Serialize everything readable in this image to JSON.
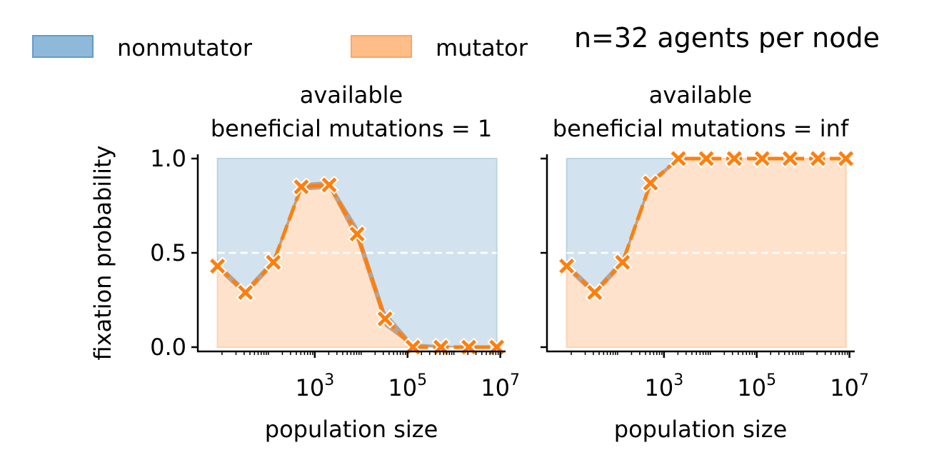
{
  "suptitle": "n=32 agents per node",
  "legend": {
    "placement": "top-left",
    "entries": [
      {
        "label": "nonmutator",
        "color": "#8fb9d9",
        "edge": "#5f9ccb"
      },
      {
        "label": "mutator",
        "color": "#ffbe87",
        "edge": "#ffa45c"
      }
    ]
  },
  "colors": {
    "line": "#ff7f0e",
    "band": "#a98e7a",
    "nonmutator_fill": "#d2e3ef",
    "mutator_fill": "#ffe2cb",
    "reference_line": "#ffffff"
  },
  "chart_data": [
    {
      "type": "area",
      "title_line1": "available",
      "title_line2": "beneficial mutations = 1",
      "xlabel": "population size",
      "ylabel": "fixation probability",
      "xscale": "log",
      "xlim": [
        3,
        13000000
      ],
      "ylim": [
        0,
        1
      ],
      "xticks": [
        1000,
        100000,
        10000000
      ],
      "xtick_labels": [
        {
          "base": "10",
          "exp": "3"
        },
        {
          "base": "10",
          "exp": "5"
        },
        {
          "base": "10",
          "exp": "7"
        }
      ],
      "yticks": [
        0.0,
        0.5,
        1.0
      ],
      "ytick_labels": [
        "0.0",
        "0.5",
        "1.0"
      ],
      "reference_y": 0.5,
      "x": [
        8,
        32,
        128,
        512,
        2048,
        8192,
        32768,
        131072,
        524288,
        2097152,
        8388608
      ],
      "values": [
        0.43,
        0.29,
        0.45,
        0.85,
        0.86,
        0.6,
        0.15,
        0.0,
        0.0,
        0.0,
        0.0
      ],
      "ci_low": [
        0.41,
        0.27,
        0.43,
        0.83,
        0.84,
        0.56,
        0.11,
        0.0,
        0.0,
        0.0,
        0.0
      ],
      "ci_high": [
        0.45,
        0.31,
        0.47,
        0.87,
        0.88,
        0.64,
        0.19,
        0.02,
        0.01,
        0.0,
        0.0
      ],
      "grid": false
    },
    {
      "type": "area",
      "title_line1": "available",
      "title_line2": "beneficial mutations = inf",
      "xlabel": "population size",
      "ylabel": "",
      "xscale": "log",
      "xlim": [
        3,
        13000000
      ],
      "ylim": [
        0,
        1
      ],
      "xticks": [
        1000,
        100000,
        10000000
      ],
      "xtick_labels": [
        {
          "base": "10",
          "exp": "3"
        },
        {
          "base": "10",
          "exp": "5"
        },
        {
          "base": "10",
          "exp": "7"
        }
      ],
      "yticks": [
        0.0,
        0.5,
        1.0
      ],
      "ytick_labels": [
        "",
        "",
        ""
      ],
      "reference_y": 0.5,
      "x": [
        8,
        32,
        128,
        512,
        2048,
        8192,
        32768,
        131072,
        524288,
        2097152,
        8388608
      ],
      "values": [
        0.43,
        0.29,
        0.45,
        0.87,
        1.0,
        1.0,
        1.0,
        1.0,
        1.0,
        1.0,
        1.0
      ],
      "ci_low": [
        0.41,
        0.27,
        0.43,
        0.85,
        0.99,
        1.0,
        1.0,
        1.0,
        1.0,
        1.0,
        1.0
      ],
      "ci_high": [
        0.45,
        0.31,
        0.47,
        0.89,
        1.0,
        1.0,
        1.0,
        1.0,
        1.0,
        1.0,
        1.0
      ],
      "grid": false
    }
  ]
}
